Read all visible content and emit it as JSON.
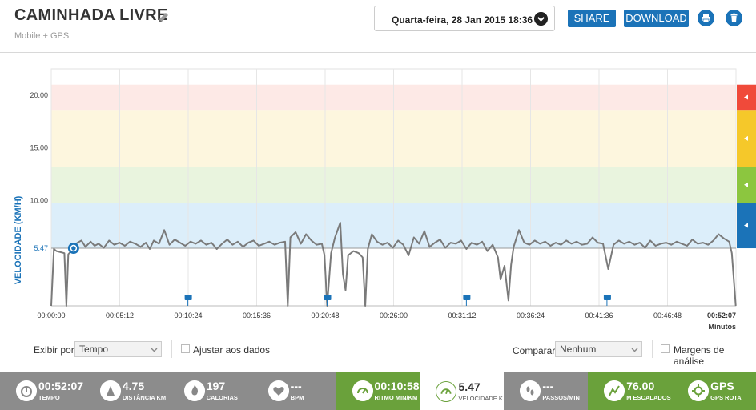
{
  "header": {
    "title": "CAMINHADA LIVRE",
    "subtitle": "Mobile + GPS",
    "date": "Quarta-feira, 28 Jan 2015 18:36",
    "share_label": "SHARE",
    "download_label": "DOWNLOAD"
  },
  "colors": {
    "accent": "#1b73b8",
    "zone_red": "#f04a3a",
    "zone_yellow": "#f5c82a",
    "zone_green": "#8cc63f",
    "zone_blue": "#1b73b8",
    "stat_gray": "#8c8c8c",
    "stat_green": "#6aa13b"
  },
  "chart_data": {
    "type": "line",
    "ylabel": "VELOCIDADE (KM/H)",
    "xlabel": "Minutos",
    "y_ticks": [
      "20.00",
      "15.00",
      "10.00",
      "5.47"
    ],
    "x_ticks": [
      "00:00:00",
      "00:05:12",
      "00:10:24",
      "00:15:36",
      "00:20:48",
      "00:26:00",
      "00:31:12",
      "00:36:24",
      "00:41:36",
      "00:46:48",
      "00:52:07"
    ],
    "average": 5.47,
    "markers_min": [
      10.4,
      21.0,
      31.6,
      42.3
    ],
    "x": [
      0.0,
      0.2,
      0.4,
      1.0,
      1.15,
      1.3,
      1.6,
      1.8,
      2.0,
      2.3,
      2.6,
      3.0,
      3.3,
      3.6,
      4.0,
      4.4,
      4.8,
      5.2,
      5.6,
      6.0,
      6.4,
      6.8,
      7.2,
      7.5,
      7.8,
      8.2,
      8.6,
      9.0,
      9.4,
      9.8,
      10.2,
      10.6,
      11.0,
      11.4,
      11.8,
      12.2,
      12.6,
      13.0,
      13.4,
      13.8,
      14.2,
      14.6,
      15.0,
      15.4,
      15.8,
      16.2,
      16.6,
      17.0,
      17.4,
      17.8,
      18.0,
      18.2,
      18.6,
      19.0,
      19.4,
      19.8,
      20.2,
      20.6,
      20.8,
      21.0,
      21.3,
      21.6,
      22.0,
      22.2,
      22.4,
      22.6,
      23.0,
      23.4,
      23.7,
      23.9,
      24.1,
      24.4,
      24.8,
      25.2,
      25.6,
      26.0,
      26.4,
      26.8,
      27.2,
      27.6,
      28.0,
      28.4,
      28.8,
      29.2,
      29.6,
      30.0,
      30.4,
      30.8,
      31.2,
      31.6,
      32.0,
      32.4,
      32.8,
      33.2,
      33.6,
      34.0,
      34.2,
      34.5,
      34.8,
      35.0,
      35.2,
      35.6,
      36.0,
      36.4,
      36.8,
      37.2,
      37.6,
      38.0,
      38.4,
      38.8,
      39.2,
      39.6,
      40.0,
      40.4,
      40.8,
      41.2,
      41.6,
      42.0,
      42.4,
      42.8,
      43.2,
      43.6,
      44.0,
      44.4,
      44.8,
      45.2,
      45.6,
      46.0,
      46.4,
      46.8,
      47.2,
      47.6,
      48.0,
      48.4,
      48.8,
      49.2,
      49.6,
      50.0,
      50.4,
      50.8,
      51.2,
      51.6,
      51.8,
      52.1
    ],
    "y": [
      0.0,
      5.4,
      5.2,
      5.0,
      0.0,
      4.9,
      5.3,
      5.8,
      6.0,
      6.2,
      5.6,
      6.1,
      5.7,
      5.9,
      5.5,
      6.2,
      5.8,
      6.0,
      5.7,
      6.1,
      5.9,
      5.6,
      6.0,
      5.4,
      6.2,
      5.9,
      7.2,
      5.8,
      6.3,
      6.0,
      5.7,
      6.1,
      5.9,
      6.2,
      5.8,
      6.0,
      5.4,
      5.9,
      6.3,
      5.8,
      6.1,
      5.6,
      6.0,
      6.2,
      5.7,
      5.9,
      6.1,
      5.8,
      6.0,
      6.1,
      0.0,
      6.5,
      7.0,
      5.9,
      6.8,
      6.2,
      5.8,
      5.9,
      4.8,
      0.0,
      5.0,
      6.5,
      7.9,
      3.0,
      1.5,
      4.8,
      5.2,
      5.0,
      4.6,
      0.0,
      5.4,
      6.8,
      6.1,
      5.8,
      6.0,
      5.5,
      6.2,
      5.8,
      4.8,
      6.5,
      5.9,
      7.1,
      5.6,
      6.0,
      6.3,
      5.5,
      6.0,
      5.9,
      6.2,
      5.4,
      6.0,
      5.8,
      6.1,
      5.2,
      5.8,
      4.6,
      2.5,
      3.8,
      0.5,
      3.9,
      5.6,
      7.2,
      6.0,
      5.8,
      6.2,
      5.9,
      6.1,
      5.7,
      6.0,
      5.8,
      6.2,
      5.9,
      6.1,
      5.8,
      5.9,
      6.5,
      6.0,
      5.9,
      3.5,
      5.8,
      6.2,
      5.9,
      6.1,
      5.8,
      6.0,
      5.5,
      6.2,
      5.7,
      5.9,
      6.0,
      5.8,
      6.1,
      5.9,
      5.7,
      6.3,
      5.9,
      6.0,
      5.8,
      6.2,
      6.8,
      6.4,
      6.1,
      5.0,
      0.0
    ],
    "ylim": [
      0,
      22.5
    ],
    "xlim": [
      0,
      52.12
    ]
  },
  "controls": {
    "exibir_label": "Exibir por",
    "exibir_value": "Tempo",
    "ajustar_label": "Ajustar aos dados",
    "comparar_label": "Comparar",
    "comparar_value": "Nenhum",
    "margens_label": "Margens de análise"
  },
  "stats": [
    {
      "value": "00:52:07",
      "label": "TEMPO",
      "icon": "stopwatch-icon",
      "active": false,
      "color": "#8c8c8c"
    },
    {
      "value": "4.75",
      "label": "DISTÂNCIA KM",
      "icon": "distance-icon",
      "active": false,
      "color": "#8c8c8c"
    },
    {
      "value": "197",
      "label": "CALORIAS",
      "icon": "flame-icon",
      "active": false,
      "color": "#8c8c8c"
    },
    {
      "value": "---",
      "label": "BPM",
      "icon": "heart-icon",
      "active": false,
      "color": "#8c8c8c"
    },
    {
      "value": "00:10:58",
      "label": "RITMO MIN/KM",
      "icon": "pace-icon",
      "active": false,
      "color": "#6aa13b"
    },
    {
      "value": "5.47",
      "label": "VELOCIDADE K...",
      "icon": "speedometer-icon",
      "active": true,
      "color": "#ffffff"
    },
    {
      "value": "---",
      "label": "PASSOS/MIN",
      "icon": "footsteps-icon",
      "active": false,
      "color": "#8c8c8c"
    },
    {
      "value": "76.00",
      "label": "M ESCALADOS",
      "icon": "climb-icon",
      "active": false,
      "color": "#6aa13b"
    },
    {
      "value": "GPS",
      "label": "GPS ROTA",
      "icon": "gps-icon",
      "active": false,
      "color": "#6aa13b"
    }
  ]
}
